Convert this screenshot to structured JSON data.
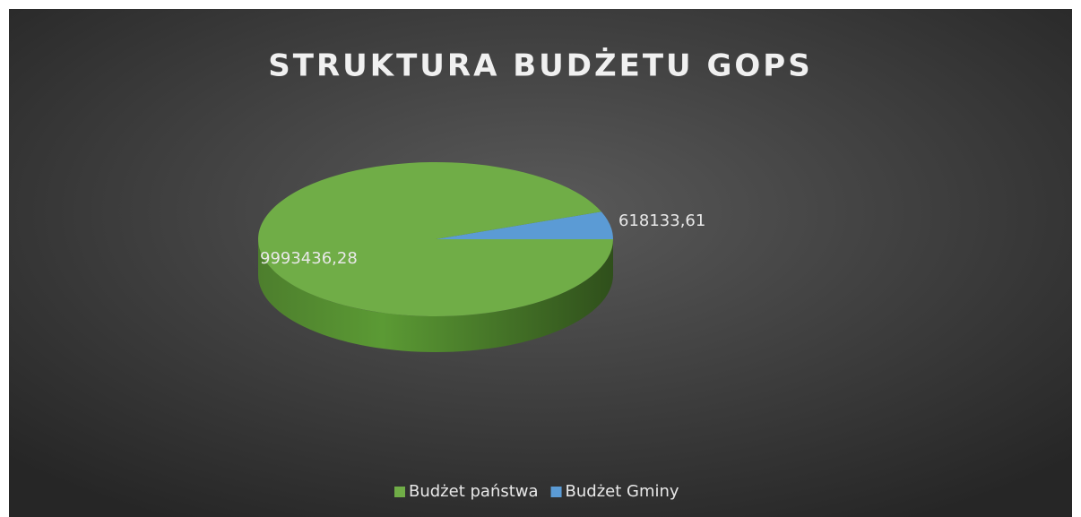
{
  "chart_data": {
    "type": "pie",
    "title": "STRUKTURA BUDŻETU GOPS",
    "categories": [
      "Budżet państwa",
      "Budżet Gminy"
    ],
    "values": [
      9993436.28,
      618133.61
    ],
    "value_labels": [
      "9993436,28",
      "618133,61"
    ],
    "colors": [
      "#70ad47",
      "#5b9bd5"
    ],
    "legend": "bottom"
  }
}
